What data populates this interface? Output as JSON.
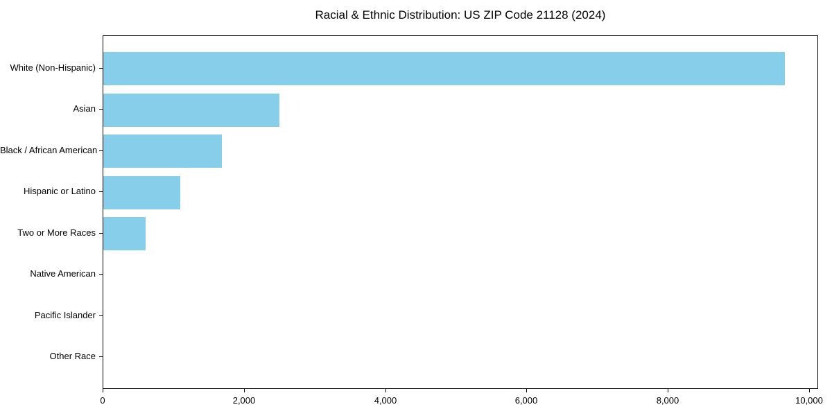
{
  "title": "Racial & Ethnic Distribution: US ZIP Code 21128 (2024)",
  "colors": {
    "bar": "#87CEEB",
    "spine": "#000000",
    "text": "#000000",
    "background": "#ffffff"
  },
  "chart_data": {
    "type": "bar",
    "orientation": "horizontal",
    "title": "Racial & Ethnic Distribution: US ZIP Code 21128 (2024)",
    "categories": [
      "White (Non-Hispanic)",
      "Asian",
      "Black / African American",
      "Hispanic or Latino",
      "Two or More Races",
      "Native American",
      "Pacific Islander",
      "Other Race"
    ],
    "values": [
      9645,
      2490,
      1680,
      1090,
      600,
      0,
      0,
      0
    ],
    "xlabel": "",
    "ylabel": "",
    "xlim": [
      0,
      10127
    ],
    "x_tick_values": [
      0,
      2000,
      4000,
      6000,
      8000,
      10000
    ],
    "x_tick_labels": [
      "0",
      "2,000",
      "4,000",
      "6,000",
      "8,000",
      "10,000"
    ],
    "bar_color": "#87CEEB",
    "bar_height_fraction": 0.8,
    "grid": false,
    "legend_position": "none"
  }
}
